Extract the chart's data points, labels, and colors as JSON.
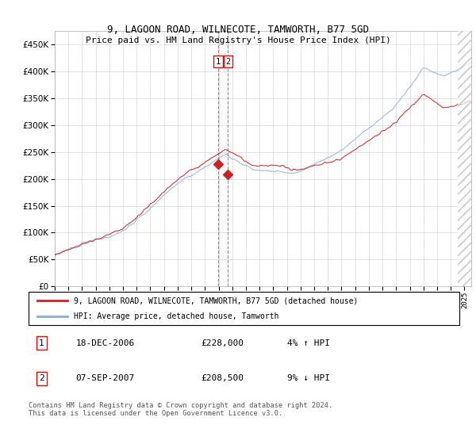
{
  "title": "9, LAGOON ROAD, WILNECOTE, TAMWORTH, B77 5GD",
  "subtitle": "Price paid vs. HM Land Registry's House Price Index (HPI)",
  "ytick_values": [
    0,
    50000,
    100000,
    150000,
    200000,
    250000,
    300000,
    350000,
    400000,
    450000
  ],
  "ylim": [
    0,
    475000
  ],
  "hpi_color": "#88aadd",
  "property_color": "#cc2222",
  "legend_property": "9, LAGOON ROAD, WILNECOTE, TAMWORTH, B77 5GD (detached house)",
  "legend_hpi": "HPI: Average price, detached house, Tamworth",
  "transaction1_date": "18-DEC-2006",
  "transaction1_price": "£228,000",
  "transaction1_pct": "4% ↑ HPI",
  "transaction1_year": 2006.96,
  "transaction1_value": 228000,
  "transaction2_date": "07-SEP-2007",
  "transaction2_price": "£208,500",
  "transaction2_pct": "9% ↓ HPI",
  "transaction2_year": 2007.68,
  "transaction2_value": 208500,
  "footer": "Contains HM Land Registry data © Crown copyright and database right 2024.\nThis data is licensed under the Open Government Licence v3.0.",
  "xlim_start": 1995,
  "xlim_end": 2025.5,
  "hatch_start": 2024.5
}
